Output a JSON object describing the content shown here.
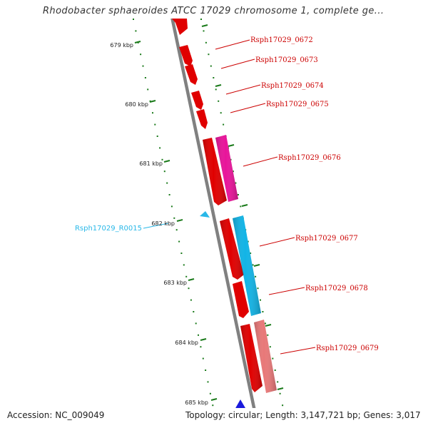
{
  "title": "Rhodobacter sphaeroides ATCC 17029 chromosome 1, complete ge...",
  "footer": {
    "accession": "Accession: NC_009049",
    "topology_label": "Topology: circular",
    "length_label": "Length: 3,147,721 bp",
    "genes_label": "Genes: 3,017"
  },
  "scale": {
    "unit": "kbp",
    "ticks": [
      {
        "value": 679,
        "label": "679 kbp"
      },
      {
        "value": 680,
        "label": "680 kbp"
      },
      {
        "value": 681,
        "label": "681 kbp"
      },
      {
        "value": 682,
        "label": "682 kbp"
      },
      {
        "value": 683,
        "label": "683 kbp"
      },
      {
        "value": 684,
        "label": "684 kbp"
      },
      {
        "value": 685,
        "label": "685 kbp"
      }
    ]
  },
  "genes": [
    {
      "id": "Rsph17029_0672",
      "color": "#e00000",
      "label_color": "#cc0000"
    },
    {
      "id": "Rsph17029_0673",
      "color": "#e00000",
      "label_color": "#cc0000"
    },
    {
      "id": "Rsph17029_0674",
      "color": "#e00000",
      "label_color": "#cc0000"
    },
    {
      "id": "Rsph17029_0675",
      "color": "#e00000",
      "label_color": "#cc0000"
    },
    {
      "id": "Rsph17029_0676",
      "color": "#e00000",
      "label_color": "#cc0000"
    },
    {
      "id": "Rsph17029_0677",
      "color": "#e00000",
      "label_color": "#cc0000"
    },
    {
      "id": "Rsph17029_0678",
      "color": "#e00000",
      "label_color": "#cc0000"
    },
    {
      "id": "Rsph17029_0679",
      "color": "#e00000",
      "label_color": "#cc0000"
    }
  ],
  "features": [
    {
      "type": "CDS",
      "color": "#e8149a"
    },
    {
      "type": "CDS",
      "color": "#12b4e6"
    },
    {
      "type": "CDS",
      "color": "#e87878"
    },
    {
      "type": "CDS",
      "color": "#1a1adc"
    }
  ],
  "rna": {
    "id": "Rsph17029_R0015",
    "color": "#29b8e8"
  },
  "colors": {
    "backbone": "#808080",
    "tick": "#1a7a1a"
  }
}
